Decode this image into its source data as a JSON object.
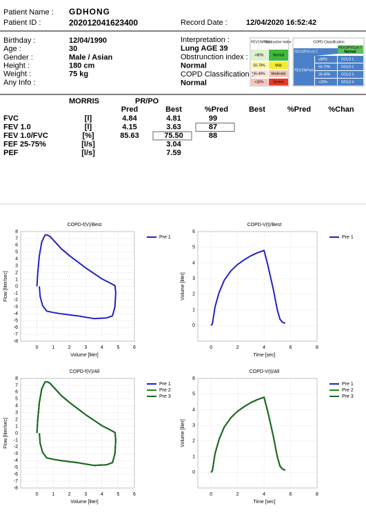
{
  "header": {
    "patient_name_label": "Patient Name :",
    "patient_name": "GDHONG",
    "patient_id_label": "Patient ID :",
    "patient_id": "202012041623400",
    "record_date_label": "Record Date :",
    "record_date": "12/04/2020 16:52:42"
  },
  "info_left": [
    {
      "label": "Birthday :",
      "value": "12/04/1990"
    },
    {
      "label": "Age :",
      "value": "30"
    },
    {
      "label": "Gender :",
      "value": "Male / Asian"
    },
    {
      "label": "Height :",
      "value": "180 cm"
    },
    {
      "label": "Weight :",
      "value": "75 kg"
    },
    {
      "label": "Any Info :",
      "value": null
    }
  ],
  "info_right": [
    {
      "label": "Interpretation :",
      "value": "Lung AGE 39"
    },
    {
      "label": "Obstrunction index :",
      "value": "Normal"
    },
    {
      "label": "COPD Classification :",
      "value": "Normal"
    }
  ],
  "obstructive_legend": {
    "headers": [
      "FEV1%Pred",
      "Obstructive Index"
    ],
    "rows": [
      [
        ">80%",
        "Normal"
      ],
      [
        "50-79%",
        "Mild"
      ],
      [
        "30-49%",
        "Moderate"
      ],
      [
        "<30%",
        "Severe"
      ]
    ]
  },
  "copd_legend": {
    "title": "COPD Classification",
    "ratio_low": "FEV1/FVC<0.7",
    "ratio_normal": "FEV1/FVC≥0.7",
    "normal": "Normal",
    "axis": "FEV1%Pred",
    "rows": [
      [
        "≥80%",
        "GOLD 1"
      ],
      [
        "50-79%",
        "GOLD 2"
      ],
      [
        "30-49%",
        "GOLD 3"
      ],
      [
        "<30%",
        "GOLD 4"
      ]
    ]
  },
  "table": {
    "headers": [
      "MORRIS",
      "PR/PO"
    ],
    "columns": [
      "Pred",
      "Best",
      "%Pred",
      "Best",
      "%Pred",
      "%Chan"
    ],
    "rows": [
      {
        "name": "FVC",
        "unit": "[l]",
        "cells": [
          "4.84",
          "4.81",
          "99"
        ]
      },
      {
        "name": "FEV 1.0",
        "unit": "[l]",
        "cells": [
          "4.15",
          "3.63",
          "87"
        ]
      },
      {
        "name": "FEV 1.0/FVC",
        "unit": "[%]",
        "cells": [
          "85.63",
          "75.50",
          "88"
        ]
      },
      {
        "name": "FEF 25-75%",
        "unit": "[l/s]",
        "cells": [
          null,
          "3.04"
        ]
      },
      {
        "name": "PEF",
        "unit": "[l/s]",
        "cells": [
          null,
          "7.59"
        ]
      }
    ]
  },
  "chart_data": [
    {
      "type": "line",
      "title": "COPD-f(V)/Best",
      "x_label": "Volume [liter]",
      "y_label": "Flow [liter/sec]",
      "xlim": [
        -1,
        6
      ],
      "ylim": [
        -8,
        8
      ],
      "xticks": [
        0,
        1,
        2,
        3,
        4,
        5,
        6
      ],
      "yticks": [
        -8,
        -7,
        -6,
        -5,
        -4,
        -3,
        -2,
        -1,
        0,
        1,
        2,
        3,
        4,
        5,
        6,
        7,
        8
      ],
      "grid": true,
      "legend": "upper right",
      "x": [
        0,
        0.05,
        0.15,
        0.3,
        0.5,
        0.65,
        0.8,
        1,
        1.5,
        2,
        2.5,
        3,
        3.5,
        4,
        4.5,
        4.81,
        4.85,
        4.8,
        4.65,
        4.3,
        3.5,
        2.5,
        1.5,
        1,
        0.6,
        0.35,
        0.2,
        0.15
      ],
      "series": [
        {
          "name": "Pre 1",
          "color": "#1f1fc8",
          "values": [
            0,
            2,
            4.5,
            6.5,
            7.5,
            7.5,
            7.3,
            6.8,
            5.5,
            4.5,
            3.6,
            2.7,
            1.9,
            1.1,
            0.5,
            0.1,
            -1,
            -3,
            -4.3,
            -4.6,
            -4.7,
            -4.3,
            -4,
            -3.8,
            -3.6,
            -2.8,
            -1.5,
            0
          ]
        }
      ]
    },
    {
      "type": "line",
      "title": "COPD-V(t)/Best",
      "x_label": "Time [sec]",
      "y_label": "Volume [liter]",
      "xlim": [
        -1,
        8
      ],
      "ylim": [
        -1,
        6
      ],
      "xticks": [
        0,
        2,
        4,
        6,
        8
      ],
      "yticks": [
        0,
        1,
        2,
        3,
        4,
        5,
        6
      ],
      "grid": true,
      "legend": "upper right",
      "x": [
        0,
        0.1,
        0.3,
        0.6,
        1,
        1.5,
        2,
        2.5,
        3,
        3.5,
        4,
        4.3,
        4.7,
        5,
        5.2,
        5.4,
        5.6
      ],
      "series": [
        {
          "name": "Pre 1",
          "color": "#1f1fc8",
          "values": [
            0,
            0.1,
            1.2,
            2.1,
            2.9,
            3.5,
            3.9,
            4.2,
            4.45,
            4.65,
            4.8,
            3.8,
            2.3,
            1,
            0.4,
            0.2,
            0.15
          ]
        }
      ]
    },
    {
      "type": "line",
      "title": "COPD-f(V)/All",
      "x_label": "Volume [liter]",
      "y_label": "Flow [liter/sec]",
      "xlim": [
        -1,
        6
      ],
      "ylim": [
        -8,
        8
      ],
      "xticks": [
        0,
        1,
        2,
        3,
        4,
        5,
        6
      ],
      "yticks": [
        -8,
        -7,
        -6,
        -5,
        -4,
        -3,
        -2,
        -1,
        0,
        1,
        2,
        3,
        4,
        5,
        6,
        7,
        8
      ],
      "grid": true,
      "legend": "upper right",
      "x": [
        0,
        0.05,
        0.15,
        0.3,
        0.5,
        0.65,
        0.8,
        1,
        1.5,
        2,
        2.5,
        3,
        3.5,
        4,
        4.5,
        4.81,
        4.85,
        4.8,
        4.65,
        4.3,
        3.5,
        2.5,
        1.5,
        1,
        0.6,
        0.35,
        0.2,
        0.15
      ],
      "series": [
        {
          "name": "Pre 1",
          "color": "#1f1fc8",
          "values": [
            0,
            2,
            4.5,
            6.5,
            7.5,
            7.5,
            7.3,
            6.8,
            5.5,
            4.5,
            3.6,
            2.7,
            1.9,
            1.1,
            0.5,
            0.1,
            -1,
            -3,
            -4.3,
            -4.6,
            -4.7,
            -4.3,
            -4,
            -3.8,
            -3.6,
            -2.8,
            -1.5,
            0
          ]
        },
        {
          "name": "Pre 2",
          "color": "#1a8a1a",
          "values": [
            0,
            2,
            4.5,
            6.5,
            7.5,
            7.5,
            7.3,
            6.8,
            5.5,
            4.5,
            3.6,
            2.7,
            1.9,
            1.1,
            0.5,
            0.1,
            -1,
            -3,
            -4.3,
            -4.6,
            -4.7,
            -4.3,
            -4,
            -3.8,
            -3.6,
            -2.8,
            -1.5,
            0
          ]
        },
        {
          "name": "Pre 3",
          "color": "#1e6b1e",
          "values": [
            0,
            2,
            4.5,
            6.5,
            7.5,
            7.5,
            7.3,
            6.8,
            5.5,
            4.5,
            3.6,
            2.7,
            1.9,
            1.1,
            0.5,
            0.1,
            -1,
            -3,
            -4.3,
            -4.6,
            -4.7,
            -4.3,
            -4,
            -3.8,
            -3.6,
            -2.8,
            -1.5,
            0
          ]
        }
      ]
    },
    {
      "type": "line",
      "title": "COPD-V(t)/All",
      "x_label": "Time [sec]",
      "y_label": "Volume [liter]",
      "xlim": [
        -1,
        8
      ],
      "ylim": [
        -1,
        6
      ],
      "xticks": [
        0,
        2,
        4,
        6,
        8
      ],
      "yticks": [
        0,
        1,
        2,
        3,
        4,
        5,
        6
      ],
      "grid": true,
      "legend": "upper right",
      "x": [
        0,
        0.1,
        0.3,
        0.6,
        1,
        1.5,
        2,
        2.5,
        3,
        3.5,
        4,
        4.3,
        4.7,
        5,
        5.2,
        5.4,
        5.6
      ],
      "series": [
        {
          "name": "Pre 1",
          "color": "#1f1fc8",
          "values": [
            0,
            0.1,
            1.2,
            2.1,
            2.9,
            3.5,
            3.9,
            4.2,
            4.45,
            4.65,
            4.8,
            3.8,
            2.3,
            1,
            0.4,
            0.2,
            0.15
          ]
        },
        {
          "name": "Pre 2",
          "color": "#1a8a1a",
          "values": [
            0,
            0.1,
            1.2,
            2.1,
            2.9,
            3.5,
            3.9,
            4.2,
            4.45,
            4.65,
            4.8,
            3.8,
            2.3,
            1,
            0.4,
            0.2,
            0.15
          ]
        },
        {
          "name": "Pre 3",
          "color": "#1e6b1e",
          "values": [
            0,
            0.1,
            1.2,
            2.1,
            2.9,
            3.5,
            3.9,
            4.2,
            4.45,
            4.65,
            4.8,
            3.8,
            2.3,
            1,
            0.4,
            0.2,
            0.15
          ]
        }
      ]
    }
  ]
}
